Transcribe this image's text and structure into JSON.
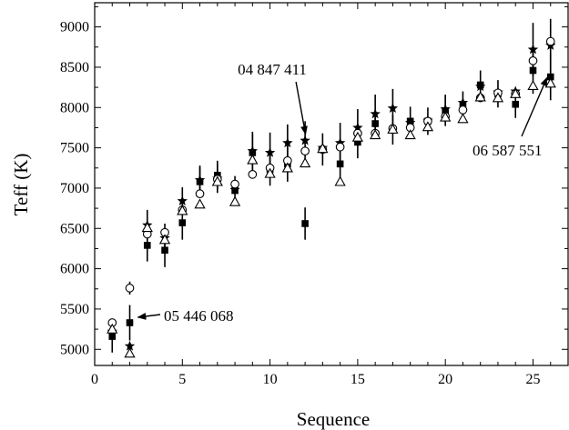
{
  "chart_data": {
    "type": "scatter",
    "title": "",
    "xlabel": "Sequence",
    "ylabel": "Teff (K)",
    "xlim": [
      0,
      27
    ],
    "ylim": [
      4800,
      9300
    ],
    "x_ticks": [
      0,
      5,
      10,
      15,
      20,
      25
    ],
    "y_ticks": [
      5000,
      5500,
      6000,
      6500,
      7000,
      7500,
      8000,
      8500,
      9000
    ],
    "grid": false,
    "legend": "none",
    "series": [
      {
        "marker": "filled-square",
        "points": [
          [
            1,
            5160
          ],
          [
            2,
            5330
          ],
          [
            3,
            6290
          ],
          [
            4,
            6230
          ],
          [
            5,
            6570
          ],
          [
            6,
            7080
          ],
          [
            7,
            7160
          ],
          [
            8,
            6970
          ],
          [
            9,
            7440
          ],
          [
            10,
            7230
          ],
          [
            11,
            7300
          ],
          [
            12,
            6560
          ],
          [
            13,
            7480
          ],
          [
            14,
            7300
          ],
          [
            15,
            7570
          ],
          [
            16,
            7800
          ],
          [
            17,
            7720
          ],
          [
            18,
            7830
          ],
          [
            19,
            7830
          ],
          [
            20,
            7960
          ],
          [
            21,
            8020
          ],
          [
            22,
            8280
          ],
          [
            23,
            8170
          ],
          [
            24,
            8040
          ],
          [
            25,
            8460
          ],
          [
            26,
            8380
          ]
        ],
        "errors": [
          200,
          220,
          200,
          210,
          210,
          180,
          180,
          180,
          230,
          200,
          220,
          200,
          200,
          240,
          200,
          160,
          180,
          180,
          170,
          190,
          180,
          180,
          170,
          170,
          290,
          290
        ]
      },
      {
        "marker": "star",
        "points": [
          [
            1,
            5220
          ],
          [
            2,
            5040
          ],
          [
            3,
            6540
          ],
          [
            4,
            6380
          ],
          [
            5,
            6840
          ],
          [
            6,
            7100
          ],
          [
            7,
            7120
          ],
          [
            8,
            6980
          ],
          [
            9,
            7460
          ],
          [
            10,
            7440
          ],
          [
            11,
            7560
          ],
          [
            12,
            7590
          ],
          [
            13,
            7500
          ],
          [
            14,
            7560
          ],
          [
            15,
            7750
          ],
          [
            16,
            7920
          ],
          [
            17,
            7990
          ],
          [
            18,
            7810
          ],
          [
            19,
            7840
          ],
          [
            20,
            7980
          ],
          [
            21,
            8060
          ],
          [
            22,
            8260
          ],
          [
            23,
            8190
          ],
          [
            24,
            8200
          ],
          [
            25,
            8720
          ],
          [
            26,
            8770
          ]
        ],
        "errors": [
          0,
          0,
          190,
          180,
          170,
          180,
          180,
          0,
          240,
          250,
          230,
          240,
          0,
          250,
          230,
          240,
          240,
          0,
          0,
          180,
          0,
          0,
          0,
          0,
          330,
          330
        ]
      },
      {
        "marker": "open-circle",
        "points": [
          [
            1,
            5330
          ],
          [
            2,
            5760
          ],
          [
            3,
            6430
          ],
          [
            4,
            6450
          ],
          [
            5,
            6730
          ],
          [
            6,
            6930
          ],
          [
            7,
            7110
          ],
          [
            8,
            7050
          ],
          [
            9,
            7170
          ],
          [
            10,
            7250
          ],
          [
            11,
            7340
          ],
          [
            12,
            7460
          ],
          [
            13,
            7480
          ],
          [
            14,
            7510
          ],
          [
            15,
            7680
          ],
          [
            16,
            7680
          ],
          [
            17,
            7740
          ],
          [
            18,
            7750
          ],
          [
            19,
            7830
          ],
          [
            20,
            7890
          ],
          [
            21,
            7970
          ],
          [
            22,
            8120
          ],
          [
            23,
            8180
          ],
          [
            24,
            8170
          ],
          [
            25,
            8580
          ],
          [
            26,
            8820
          ]
        ],
        "errors": [
          0,
          80,
          0,
          0,
          0,
          0,
          0,
          0,
          0,
          0,
          0,
          0,
          0,
          0,
          0,
          0,
          0,
          0,
          0,
          0,
          0,
          0,
          0,
          0,
          0,
          0
        ]
      },
      {
        "marker": "open-triangle",
        "points": [
          [
            1,
            5250
          ],
          [
            2,
            4950
          ],
          [
            3,
            6510
          ],
          [
            4,
            6360
          ],
          [
            5,
            6720
          ],
          [
            6,
            6800
          ],
          [
            7,
            7080
          ],
          [
            8,
            6830
          ],
          [
            9,
            7350
          ],
          [
            10,
            7180
          ],
          [
            11,
            7250
          ],
          [
            12,
            7310
          ],
          [
            13,
            7490
          ],
          [
            14,
            7080
          ],
          [
            15,
            7630
          ],
          [
            16,
            7660
          ],
          [
            17,
            7730
          ],
          [
            18,
            7660
          ],
          [
            19,
            7760
          ],
          [
            20,
            7880
          ],
          [
            21,
            7860
          ],
          [
            22,
            8130
          ],
          [
            23,
            8120
          ],
          [
            24,
            8170
          ],
          [
            25,
            8270
          ],
          [
            26,
            8300
          ]
        ],
        "errors": [
          0,
          0,
          0,
          0,
          0,
          0,
          0,
          0,
          0,
          0,
          0,
          0,
          0,
          0,
          0,
          0,
          0,
          0,
          0,
          0,
          0,
          0,
          0,
          0,
          0,
          0
        ]
      }
    ],
    "annotations": [
      {
        "text": "04 847 411",
        "target": [
          12,
          7590
        ],
        "position": "above"
      },
      {
        "text": "05 446 068",
        "target": [
          2,
          5330
        ],
        "position": "right"
      },
      {
        "text": "06 587 551",
        "target": [
          26,
          8380
        ],
        "position": "below-left"
      }
    ]
  }
}
